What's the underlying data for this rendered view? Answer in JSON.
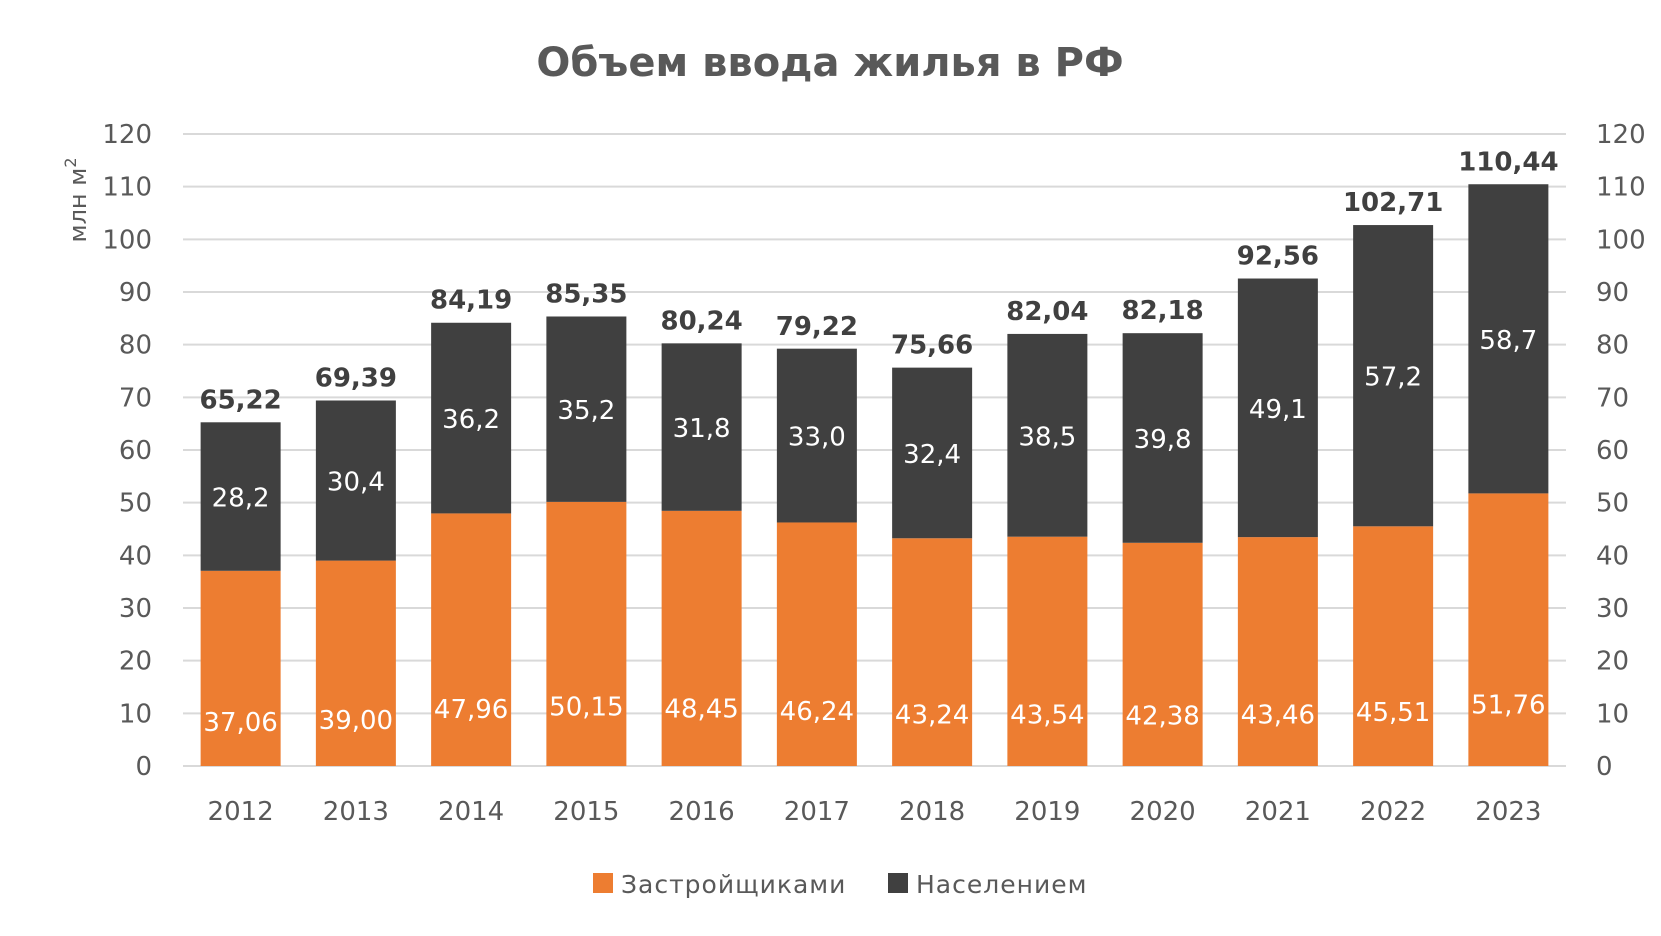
{
  "chart_data": {
    "type": "bar",
    "stacked": true,
    "title": "Объем ввода жилья в РФ",
    "ylabel": "млн м",
    "ylabel_superscript": "2",
    "ylim": [
      0,
      120
    ],
    "yticks": [
      0,
      10,
      20,
      30,
      40,
      50,
      60,
      70,
      80,
      90,
      100,
      110,
      120
    ],
    "secondary_axis": true,
    "grid": true,
    "legend_position": "bottom",
    "categories": [
      "2012",
      "2013",
      "2014",
      "2015",
      "2016",
      "2017",
      "2018",
      "2019",
      "2020",
      "2021",
      "2022",
      "2023"
    ],
    "series": [
      {
        "name": "Застройщиками",
        "color": "#ED7D31",
        "values": [
          37.06,
          39.0,
          47.96,
          50.15,
          48.45,
          46.24,
          43.24,
          43.54,
          42.38,
          43.46,
          45.51,
          51.76
        ],
        "labels": [
          "37,06",
          "39,00",
          "47,96",
          "50,15",
          "48,45",
          "46,24",
          "43,24",
          "43,54",
          "42,38",
          "43,46",
          "45,51",
          "51,76"
        ]
      },
      {
        "name": "Населением",
        "color": "#404040",
        "values": [
          28.2,
          30.4,
          36.2,
          35.2,
          31.8,
          33.0,
          32.4,
          38.5,
          39.8,
          49.1,
          57.2,
          58.7
        ],
        "labels": [
          "28,2",
          "30,4",
          "36,2",
          "35,2",
          "31,8",
          "33,0",
          "32,4",
          "38,5",
          "39,8",
          "49,1",
          "57,2",
          "58,7"
        ]
      }
    ],
    "totals": [
      65.22,
      69.39,
      84.19,
      85.35,
      80.24,
      79.22,
      75.66,
      82.04,
      82.18,
      92.56,
      102.71,
      110.44
    ],
    "total_labels": [
      "65,22",
      "69,39",
      "84,19",
      "85,35",
      "80,24",
      "79,22",
      "75,66",
      "82,04",
      "82,18",
      "92,56",
      "102,71",
      "110,44"
    ]
  }
}
